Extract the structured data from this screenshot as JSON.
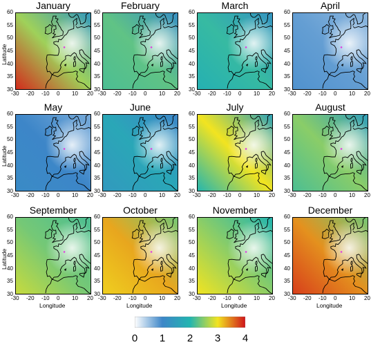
{
  "panels": [
    {
      "month": "January"
    },
    {
      "month": "February"
    },
    {
      "month": "March"
    },
    {
      "month": "April"
    },
    {
      "month": "May"
    },
    {
      "month": "June"
    },
    {
      "month": "July"
    },
    {
      "month": "August"
    },
    {
      "month": "September"
    },
    {
      "month": "October"
    },
    {
      "month": "November"
    },
    {
      "month": "December"
    }
  ],
  "axes": {
    "xlabel": "Longitude",
    "ylabel": "Latitude",
    "xticks": [
      "-30",
      "-20",
      "-10",
      "0",
      "10",
      "20"
    ],
    "yticks": [
      "60",
      "55",
      "50",
      "45",
      "40",
      "35",
      "30"
    ],
    "xrange": [
      -30,
      20
    ],
    "yrange": [
      30,
      60
    ]
  },
  "colorbar": {
    "ticks": [
      "0",
      "1",
      "2",
      "3",
      "4"
    ],
    "range": [
      0,
      4
    ],
    "colors": [
      "#ffffff",
      "#3d86c8",
      "#22b5b0",
      "#f2e420",
      "#d0141a"
    ]
  },
  "field_levels": [
    {
      "west": 3.9,
      "mid": 2.6,
      "east": 1.4
    },
    {
      "west": 2.2,
      "mid": 2.3,
      "east": 1.2
    },
    {
      "west": 1.9,
      "mid": 2.1,
      "east": 1.3
    },
    {
      "west": 0.9,
      "mid": 0.8,
      "east": 0.6
    },
    {
      "west": 1.1,
      "mid": 1.0,
      "east": 0.7
    },
    {
      "west": 1.4,
      "mid": 1.7,
      "east": 1.0
    },
    {
      "west": 2.0,
      "mid": 3.0,
      "east": 1.6
    },
    {
      "west": 2.2,
      "mid": 2.5,
      "east": 1.5
    },
    {
      "west": 2.8,
      "mid": 2.4,
      "east": 2.2
    },
    {
      "west": 3.1,
      "mid": 3.3,
      "east": 2.4
    },
    {
      "west": 3.0,
      "mid": 2.5,
      "east": 2.0
    },
    {
      "west": 3.8,
      "mid": 3.4,
      "east": 2.4
    }
  ]
}
